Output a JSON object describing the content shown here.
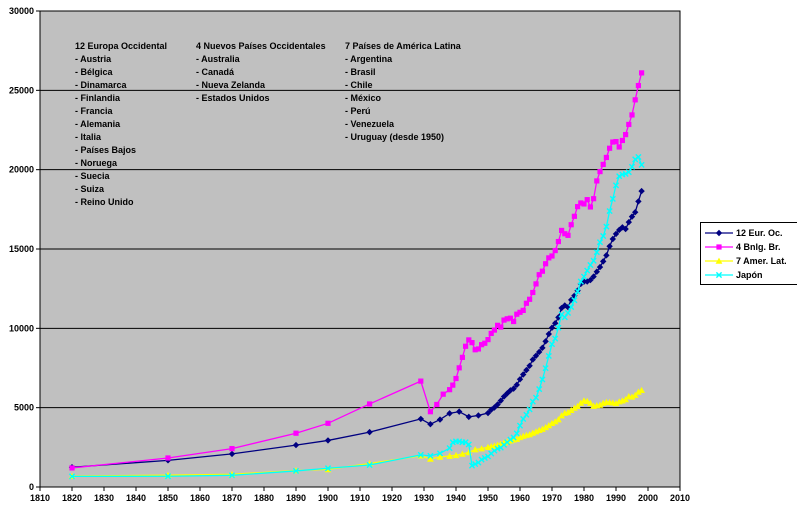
{
  "chart_data": {
    "type": "line",
    "title": "",
    "xlabel": "",
    "ylabel": "",
    "xlim": [
      1810,
      2010
    ],
    "ylim": [
      0,
      30000
    ],
    "xticks": [
      1810,
      1820,
      1830,
      1840,
      1850,
      1860,
      1870,
      1880,
      1890,
      1900,
      1910,
      1920,
      1930,
      1940,
      1950,
      1960,
      1970,
      1980,
      1990,
      2000,
      2010
    ],
    "yticks": [
      0,
      5000,
      10000,
      15000,
      20000,
      25000,
      30000
    ],
    "grid": "horizontal",
    "plot_background": "#c0c0c0",
    "gridline_color": "#000000",
    "legend_position": "right",
    "series": [
      {
        "name": "12 Eur. Oc.",
        "color": "#000080",
        "marker": "diamond",
        "points": [
          [
            1820,
            1245
          ],
          [
            1850,
            1680
          ],
          [
            1870,
            2086
          ],
          [
            1890,
            2640
          ],
          [
            1900,
            2935
          ],
          [
            1913,
            3458
          ],
          [
            1929,
            4290
          ],
          [
            1932,
            3960
          ],
          [
            1935,
            4250
          ],
          [
            1938,
            4640
          ],
          [
            1941,
            4750
          ],
          [
            1944,
            4420
          ],
          [
            1947,
            4510
          ],
          [
            1950,
            4660
          ],
          [
            1951,
            4870
          ],
          [
            1952,
            5010
          ],
          [
            1953,
            5200
          ],
          [
            1954,
            5440
          ],
          [
            1955,
            5700
          ],
          [
            1956,
            5900
          ],
          [
            1957,
            6090
          ],
          [
            1958,
            6200
          ],
          [
            1959,
            6440
          ],
          [
            1960,
            6790
          ],
          [
            1961,
            7090
          ],
          [
            1962,
            7370
          ],
          [
            1963,
            7640
          ],
          [
            1964,
            8030
          ],
          [
            1965,
            8270
          ],
          [
            1966,
            8510
          ],
          [
            1967,
            8770
          ],
          [
            1968,
            9180
          ],
          [
            1969,
            9640
          ],
          [
            1970,
            10040
          ],
          [
            1971,
            10320
          ],
          [
            1972,
            10690
          ],
          [
            1973,
            11280
          ],
          [
            1974,
            11440
          ],
          [
            1975,
            11330
          ],
          [
            1976,
            11790
          ],
          [
            1977,
            12060
          ],
          [
            1978,
            12380
          ],
          [
            1979,
            12800
          ],
          [
            1980,
            12940
          ],
          [
            1981,
            12950
          ],
          [
            1982,
            13040
          ],
          [
            1983,
            13260
          ],
          [
            1984,
            13570
          ],
          [
            1985,
            13860
          ],
          [
            1986,
            14220
          ],
          [
            1987,
            14600
          ],
          [
            1988,
            15170
          ],
          [
            1989,
            15630
          ],
          [
            1990,
            15950
          ],
          [
            1991,
            16200
          ],
          [
            1992,
            16370
          ],
          [
            1993,
            16260
          ],
          [
            1994,
            16690
          ],
          [
            1995,
            17040
          ],
          [
            1996,
            17320
          ],
          [
            1997,
            18000
          ],
          [
            1998,
            18650
          ]
        ]
      },
      {
        "name": "4 Bnlg. Br.",
        "color": "#ff00ff",
        "marker": "square",
        "points": [
          [
            1820,
            1202
          ],
          [
            1850,
            1830
          ],
          [
            1870,
            2419
          ],
          [
            1890,
            3390
          ],
          [
            1900,
            4014
          ],
          [
            1913,
            5233
          ],
          [
            1929,
            6673
          ],
          [
            1932,
            4745
          ],
          [
            1934,
            5200
          ],
          [
            1936,
            5850
          ],
          [
            1938,
            6134
          ],
          [
            1939,
            6420
          ],
          [
            1940,
            6838
          ],
          [
            1941,
            7510
          ],
          [
            1942,
            8170
          ],
          [
            1943,
            8870
          ],
          [
            1944,
            9270
          ],
          [
            1945,
            9100
          ],
          [
            1946,
            8650
          ],
          [
            1947,
            8700
          ],
          [
            1948,
            8970
          ],
          [
            1949,
            9060
          ],
          [
            1950,
            9290
          ],
          [
            1951,
            9680
          ],
          [
            1952,
            9890
          ],
          [
            1953,
            10190
          ],
          [
            1954,
            10080
          ],
          [
            1955,
            10520
          ],
          [
            1956,
            10600
          ],
          [
            1957,
            10640
          ],
          [
            1958,
            10430
          ],
          [
            1959,
            10890
          ],
          [
            1960,
            11010
          ],
          [
            1961,
            11130
          ],
          [
            1962,
            11580
          ],
          [
            1963,
            11830
          ],
          [
            1964,
            12260
          ],
          [
            1965,
            12800
          ],
          [
            1966,
            13380
          ],
          [
            1967,
            13600
          ],
          [
            1968,
            14070
          ],
          [
            1969,
            14440
          ],
          [
            1970,
            14560
          ],
          [
            1971,
            14900
          ],
          [
            1972,
            15470
          ],
          [
            1973,
            16170
          ],
          [
            1974,
            15960
          ],
          [
            1975,
            15860
          ],
          [
            1976,
            16530
          ],
          [
            1977,
            17060
          ],
          [
            1978,
            17670
          ],
          [
            1979,
            17900
          ],
          [
            1980,
            17840
          ],
          [
            1981,
            18110
          ],
          [
            1982,
            17650
          ],
          [
            1983,
            18170
          ],
          [
            1984,
            19290
          ],
          [
            1985,
            19880
          ],
          [
            1986,
            20330
          ],
          [
            1987,
            20770
          ],
          [
            1988,
            21350
          ],
          [
            1989,
            21740
          ],
          [
            1990,
            21770
          ],
          [
            1991,
            21430
          ],
          [
            1992,
            21840
          ],
          [
            1993,
            22210
          ],
          [
            1994,
            22850
          ],
          [
            1995,
            23450
          ],
          [
            1996,
            24400
          ],
          [
            1997,
            25300
          ],
          [
            1998,
            26100
          ]
        ]
      },
      {
        "name": "7 Amer. Lat.",
        "color": "#ffff00",
        "marker": "triangle",
        "points": [
          [
            1820,
            691
          ],
          [
            1850,
            750
          ],
          [
            1870,
            800
          ],
          [
            1890,
            1040
          ],
          [
            1900,
            1110
          ],
          [
            1913,
            1480
          ],
          [
            1929,
            1970
          ],
          [
            1932,
            1770
          ],
          [
            1935,
            1890
          ],
          [
            1938,
            1950
          ],
          [
            1940,
            2000
          ],
          [
            1942,
            2080
          ],
          [
            1944,
            2180
          ],
          [
            1946,
            2360
          ],
          [
            1948,
            2420
          ],
          [
            1950,
            2510
          ],
          [
            1951,
            2560
          ],
          [
            1952,
            2600
          ],
          [
            1953,
            2650
          ],
          [
            1954,
            2720
          ],
          [
            1955,
            2790
          ],
          [
            1956,
            2850
          ],
          [
            1957,
            2920
          ],
          [
            1958,
            2980
          ],
          [
            1959,
            3020
          ],
          [
            1960,
            3130
          ],
          [
            1961,
            3210
          ],
          [
            1962,
            3270
          ],
          [
            1963,
            3310
          ],
          [
            1964,
            3410
          ],
          [
            1965,
            3490
          ],
          [
            1966,
            3580
          ],
          [
            1967,
            3650
          ],
          [
            1968,
            3760
          ],
          [
            1969,
            3880
          ],
          [
            1970,
            4020
          ],
          [
            1971,
            4120
          ],
          [
            1972,
            4250
          ],
          [
            1973,
            4500
          ],
          [
            1974,
            4660
          ],
          [
            1975,
            4710
          ],
          [
            1976,
            4840
          ],
          [
            1977,
            4980
          ],
          [
            1978,
            5090
          ],
          [
            1979,
            5300
          ],
          [
            1980,
            5440
          ],
          [
            1981,
            5410
          ],
          [
            1982,
            5290
          ],
          [
            1983,
            5100
          ],
          [
            1984,
            5140
          ],
          [
            1985,
            5170
          ],
          [
            1986,
            5290
          ],
          [
            1987,
            5350
          ],
          [
            1988,
            5340
          ],
          [
            1989,
            5310
          ],
          [
            1990,
            5270
          ],
          [
            1991,
            5380
          ],
          [
            1992,
            5440
          ],
          [
            1993,
            5520
          ],
          [
            1994,
            5710
          ],
          [
            1995,
            5680
          ],
          [
            1996,
            5790
          ],
          [
            1997,
            5990
          ],
          [
            1998,
            6100
          ]
        ]
      },
      {
        "name": "Japón",
        "color": "#00ffff",
        "marker": "x",
        "points": [
          [
            1820,
            669
          ],
          [
            1850,
            679
          ],
          [
            1870,
            737
          ],
          [
            1890,
            1012
          ],
          [
            1900,
            1180
          ],
          [
            1913,
            1387
          ],
          [
            1929,
            2026
          ],
          [
            1932,
            1963
          ],
          [
            1935,
            2120
          ],
          [
            1938,
            2449
          ],
          [
            1939,
            2816
          ],
          [
            1940,
            2874
          ],
          [
            1941,
            2873
          ],
          [
            1942,
            2818
          ],
          [
            1943,
            2822
          ],
          [
            1944,
            2682
          ],
          [
            1945,
            1346
          ],
          [
            1946,
            1444
          ],
          [
            1947,
            1541
          ],
          [
            1948,
            1725
          ],
          [
            1949,
            1830
          ],
          [
            1950,
            1926
          ],
          [
            1951,
            2110
          ],
          [
            1952,
            2290
          ],
          [
            1953,
            2420
          ],
          [
            1954,
            2480
          ],
          [
            1955,
            2660
          ],
          [
            1956,
            2820
          ],
          [
            1957,
            2990
          ],
          [
            1958,
            3120
          ],
          [
            1959,
            3380
          ],
          [
            1960,
            3870
          ],
          [
            1961,
            4290
          ],
          [
            1962,
            4550
          ],
          [
            1963,
            4890
          ],
          [
            1964,
            5390
          ],
          [
            1965,
            5630
          ],
          [
            1966,
            6170
          ],
          [
            1967,
            6780
          ],
          [
            1968,
            7490
          ],
          [
            1969,
            8260
          ],
          [
            1970,
            9000
          ],
          [
            1971,
            9350
          ],
          [
            1972,
            10040
          ],
          [
            1973,
            10870
          ],
          [
            1974,
            10700
          ],
          [
            1975,
            10970
          ],
          [
            1976,
            11340
          ],
          [
            1977,
            11770
          ],
          [
            1978,
            12330
          ],
          [
            1979,
            12950
          ],
          [
            1980,
            13260
          ],
          [
            1981,
            13640
          ],
          [
            1982,
            13990
          ],
          [
            1983,
            14260
          ],
          [
            1984,
            14800
          ],
          [
            1985,
            15430
          ],
          [
            1986,
            15820
          ],
          [
            1987,
            16410
          ],
          [
            1988,
            17390
          ],
          [
            1989,
            18160
          ],
          [
            1990,
            19010
          ],
          [
            1991,
            19590
          ],
          [
            1992,
            19700
          ],
          [
            1993,
            19730
          ],
          [
            1994,
            19840
          ],
          [
            1995,
            20180
          ],
          [
            1996,
            20650
          ],
          [
            1997,
            20800
          ],
          [
            1998,
            20300
          ]
        ]
      }
    ],
    "annotations": [
      {
        "title": "12 Europa Occidental",
        "items": [
          "- Austria",
          "- Bélgica",
          "- Dinamarca",
          "- Finlandia",
          "- Francia",
          "- Alemania",
          "- Italia",
          "- Países Bajos",
          "- Noruega",
          "- Suecia",
          "- Suiza",
          "- Reino Unido"
        ]
      },
      {
        "title": "4 Nuevos Países Occidentales",
        "items": [
          "- Australia",
          "- Canadá",
          "- Nueva Zelanda",
          "- Estados Unidos"
        ]
      },
      {
        "title": "7 Países de América Latina",
        "items": [
          "- Argentina",
          "- Brasil",
          "- Chile",
          "- México",
          "- Perú",
          "- Venezuela",
          "- Uruguay (desde 1950)"
        ]
      }
    ],
    "legend_entries": [
      "12 Eur. Oc.",
      "4 Bnlg. Br.",
      "7 Amer. Lat.",
      "Japón"
    ]
  }
}
